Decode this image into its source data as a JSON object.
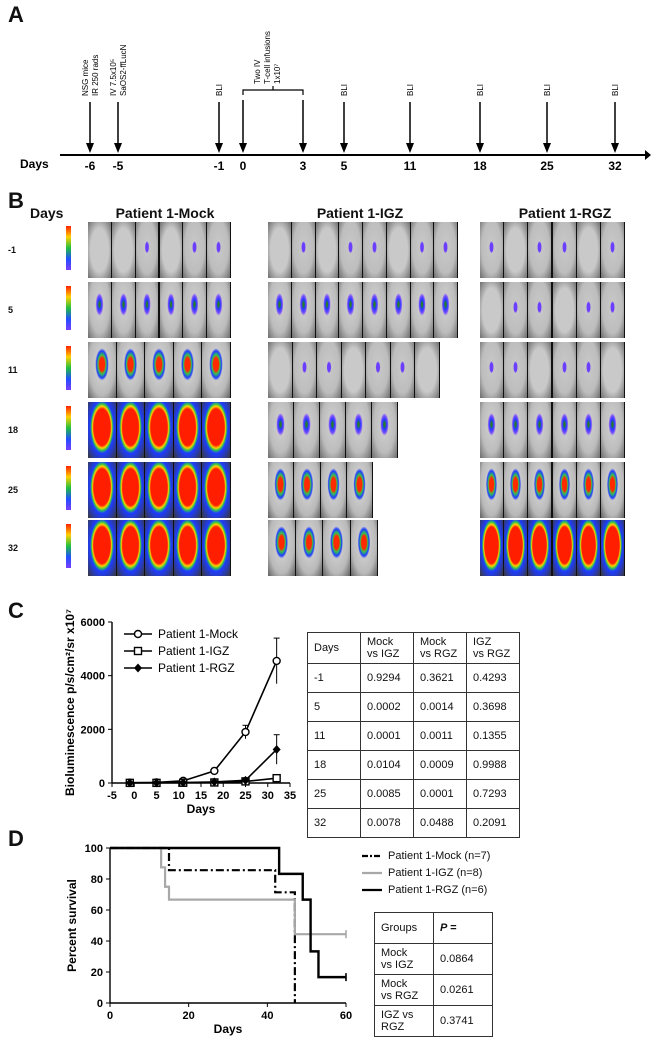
{
  "panels": {
    "a": "A",
    "b": "B",
    "c": "C",
    "d": "D"
  },
  "timeline": {
    "days_label": "Days",
    "ticks": [
      "-6",
      "-5",
      "-1",
      "0",
      "3",
      "5",
      "11",
      "18",
      "25",
      "32"
    ],
    "events": [
      {
        "day": "-6",
        "label_lines": [
          "NSG mice",
          "IR 250 rads"
        ]
      },
      {
        "day": "-5",
        "label_lines": [
          "IV 7.5x10⁵",
          "SaOS2-ffLucN"
        ]
      },
      {
        "day": "-1",
        "label_lines": [
          "BLI"
        ]
      },
      {
        "day": "5",
        "label_lines": [
          "BLI"
        ]
      },
      {
        "day": "11",
        "label_lines": [
          "BLI"
        ]
      },
      {
        "day": "18",
        "label_lines": [
          "BLI"
        ]
      },
      {
        "day": "25",
        "label_lines": [
          "BLI"
        ]
      },
      {
        "day": "32",
        "label_lines": [
          "BLI"
        ]
      }
    ],
    "infusion_label_lines": [
      "Two IV",
      "T-cell infusions",
      "1x10⁷"
    ]
  },
  "imaging": {
    "days_header": "Days",
    "groups": [
      "Patient 1-Mock",
      "Patient 1-IGZ",
      "Patient 1-RGZ"
    ],
    "days": [
      "-1",
      "5",
      "11",
      "18",
      "25",
      "32"
    ]
  },
  "chart_data": [
    {
      "type": "line",
      "title": "",
      "xlabel": "Days",
      "ylabel": "Bioluminescence p/s/cm²/sr x10⁷",
      "xlim": [
        -5,
        35
      ],
      "ylim": [
        0,
        6000
      ],
      "xticks": [
        "-5",
        "0",
        "5",
        "10",
        "15",
        "20",
        "25",
        "30",
        "35"
      ],
      "yticks": [
        "0",
        "2000",
        "4000",
        "6000"
      ],
      "legend": [
        {
          "name": "Patient 1-Mock",
          "marker": "circle-open"
        },
        {
          "name": "Patient 1-IGZ",
          "marker": "square-open"
        },
        {
          "name": "Patient 1-RGZ",
          "marker": "diamond-filled"
        }
      ],
      "series": [
        {
          "name": "Patient 1-Mock",
          "x": [
            -1,
            5,
            11,
            18,
            25,
            32
          ],
          "y": [
            10,
            20,
            80,
            450,
            1900,
            4550
          ],
          "err": [
            5,
            10,
            30,
            100,
            250,
            850
          ]
        },
        {
          "name": "Patient 1-IGZ",
          "x": [
            -1,
            5,
            11,
            18,
            25,
            32
          ],
          "y": [
            5,
            5,
            10,
            20,
            60,
            180
          ],
          "err": [
            2,
            3,
            5,
            10,
            20,
            60
          ]
        },
        {
          "name": "Patient 1-RGZ",
          "x": [
            -1,
            5,
            11,
            18,
            25,
            32
          ],
          "y": [
            5,
            10,
            15,
            40,
            100,
            1250
          ],
          "err": [
            3,
            5,
            8,
            15,
            40,
            550
          ]
        }
      ]
    },
    {
      "type": "table",
      "headers": [
        "Days",
        "Mock\nvs IGZ",
        "Mock\nvs RGZ",
        "IGZ\nvs RGZ"
      ],
      "rows": [
        [
          "-1",
          "0.9294",
          "0.3621",
          "0.4293"
        ],
        [
          "5",
          "0.0002",
          "0.0014",
          "0.3698"
        ],
        [
          "11",
          "0.0001",
          "0.0011",
          "0.1355"
        ],
        [
          "18",
          "0.0104",
          "0.0009",
          "0.9988"
        ],
        [
          "25",
          "0.0085",
          "0.0001",
          "0.7293"
        ],
        [
          "32",
          "0.0078",
          "0.0488",
          "0.2091"
        ]
      ]
    },
    {
      "type": "line",
      "subtype": "kaplan-meier",
      "xlabel": "Days",
      "ylabel": "Percent survival",
      "xlim": [
        0,
        60
      ],
      "ylim": [
        0,
        100
      ],
      "xticks": [
        "0",
        "20",
        "40",
        "60"
      ],
      "yticks": [
        "0",
        "20",
        "40",
        "60",
        "80",
        "100"
      ],
      "series": [
        {
          "name": "Patient 1-Mock (n=7)",
          "style": "dash-dot black",
          "x": [
            0,
            15,
            15,
            42,
            42,
            47,
            47
          ],
          "y": [
            100,
            100,
            85.7,
            85.7,
            71.4,
            71.4,
            0
          ]
        },
        {
          "name": "Patient 1-IGZ (n=8)",
          "style": "solid gray",
          "x": [
            0,
            13,
            13,
            14,
            14,
            15,
            15,
            47,
            47,
            60
          ],
          "y": [
            100,
            100,
            87.5,
            87.5,
            75,
            75,
            66.7,
            66.7,
            44.4,
            44.4
          ]
        },
        {
          "name": "Patient 1-RGZ (n=6)",
          "style": "solid black",
          "x": [
            0,
            43,
            43,
            49,
            49,
            51,
            51,
            53,
            53,
            60
          ],
          "y": [
            100,
            100,
            83.3,
            83.3,
            66.7,
            66.7,
            33.3,
            33.3,
            16.7,
            16.7
          ]
        }
      ]
    },
    {
      "type": "table",
      "headers": [
        "Groups",
        "P ="
      ],
      "rows": [
        [
          "Mock\nvs IGZ",
          "0.0864"
        ],
        [
          "Mock\nvs RGZ",
          "0.0261"
        ],
        [
          "IGZ vs\nRGZ",
          "0.3741"
        ]
      ]
    }
  ]
}
